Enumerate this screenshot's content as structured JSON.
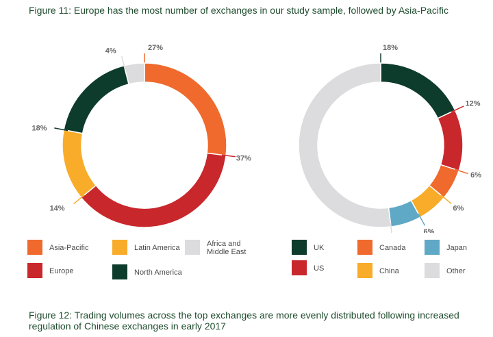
{
  "captions": {
    "top": "Figure 11: Europe has the most number of exchanges in our study sample, followed by Asia-Pacific",
    "bottom": "Figure 12: Trading volumes across the top exchanges are more evenly distributed following increased regulation of Chinese exchanges in early 2017"
  },
  "chart_data": [
    {
      "type": "pie",
      "title": "",
      "categories": [
        "Asia-Pacific",
        "Europe",
        "Latin America",
        "North America",
        "Africa and Middle East"
      ],
      "values": [
        27,
        37,
        14,
        18,
        4
      ],
      "labels": [
        "27%",
        "37%",
        "14%",
        "18%",
        "4%"
      ],
      "colors": [
        "#ef6a2c",
        "#c8272c",
        "#f8ac2a",
        "#0d3b2c",
        "#dcdcde"
      ],
      "legend": [
        {
          "label": "Asia-Pacific",
          "color": "#ef6a2c"
        },
        {
          "label": "Europe",
          "color": "#c8272c"
        },
        {
          "label": "Latin America",
          "color": "#f8ac2a"
        },
        {
          "label": "North America",
          "color": "#0d3b2c"
        },
        {
          "label": "Africa and Middle East",
          "color": "#dcdcde"
        }
      ],
      "legend_placement": "bottom"
    },
    {
      "type": "pie",
      "title": "",
      "categories": [
        "UK",
        "US",
        "Canada",
        "China",
        "Japan",
        "Other"
      ],
      "values": [
        18,
        12,
        6,
        6,
        6,
        52
      ],
      "labels": [
        "18%",
        "12%",
        "6%",
        "6%",
        "6%",
        "52%"
      ],
      "colors": [
        "#0d3b2c",
        "#c8272c",
        "#ef6a2c",
        "#f8ac2a",
        "#5fa8c6",
        "#dcdcde"
      ],
      "legend": [
        {
          "label": "UK",
          "color": "#0d3b2c"
        },
        {
          "label": "US",
          "color": "#c8272c"
        },
        {
          "label": "Canada",
          "color": "#ef6a2c"
        },
        {
          "label": "China",
          "color": "#f8ac2a"
        },
        {
          "label": "Japan",
          "color": "#5fa8c6"
        },
        {
          "label": "Other",
          "color": "#dcdcde"
        }
      ],
      "legend_placement": "bottom"
    }
  ]
}
